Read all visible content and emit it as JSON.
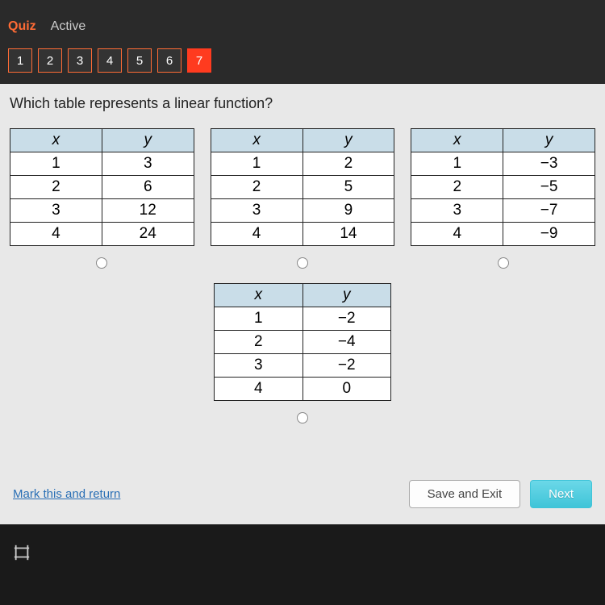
{
  "header": {
    "tab_quiz": "Quiz",
    "tab_active": "Active"
  },
  "qnav": {
    "items": [
      "1",
      "2",
      "3",
      "4",
      "5",
      "6",
      "7"
    ],
    "current_index": 6
  },
  "question": "Which table represents a linear function?",
  "tables": [
    {
      "headers": [
        "x",
        "y"
      ],
      "rows": [
        [
          "1",
          "3"
        ],
        [
          "2",
          "6"
        ],
        [
          "3",
          "12"
        ],
        [
          "4",
          "24"
        ]
      ]
    },
    {
      "headers": [
        "x",
        "y"
      ],
      "rows": [
        [
          "1",
          "2"
        ],
        [
          "2",
          "5"
        ],
        [
          "3",
          "9"
        ],
        [
          "4",
          "14"
        ]
      ]
    },
    {
      "headers": [
        "x",
        "y"
      ],
      "rows": [
        [
          "1",
          "−3"
        ],
        [
          "2",
          "−5"
        ],
        [
          "3",
          "−7"
        ],
        [
          "4",
          "−9"
        ]
      ]
    },
    {
      "headers": [
        "x",
        "y"
      ],
      "rows": [
        [
          "1",
          "−2"
        ],
        [
          "2",
          "−4"
        ],
        [
          "3",
          "−2"
        ],
        [
          "4",
          "0"
        ]
      ]
    }
  ],
  "table_style": {
    "header_bg": "#c9dde8",
    "border_color": "#222222",
    "cell_bg": "#ffffff",
    "font_size": 19
  },
  "footer": {
    "mark": "Mark this and return",
    "save": "Save and Exit",
    "next": "Next"
  },
  "colors": {
    "accent": "#ff6b35",
    "current_q": "#ff3b1f",
    "link": "#2a6fb5",
    "next_btn": "#3fc4d8",
    "page_bg": "#e8e8e8",
    "header_bg": "#2a2a2a"
  }
}
